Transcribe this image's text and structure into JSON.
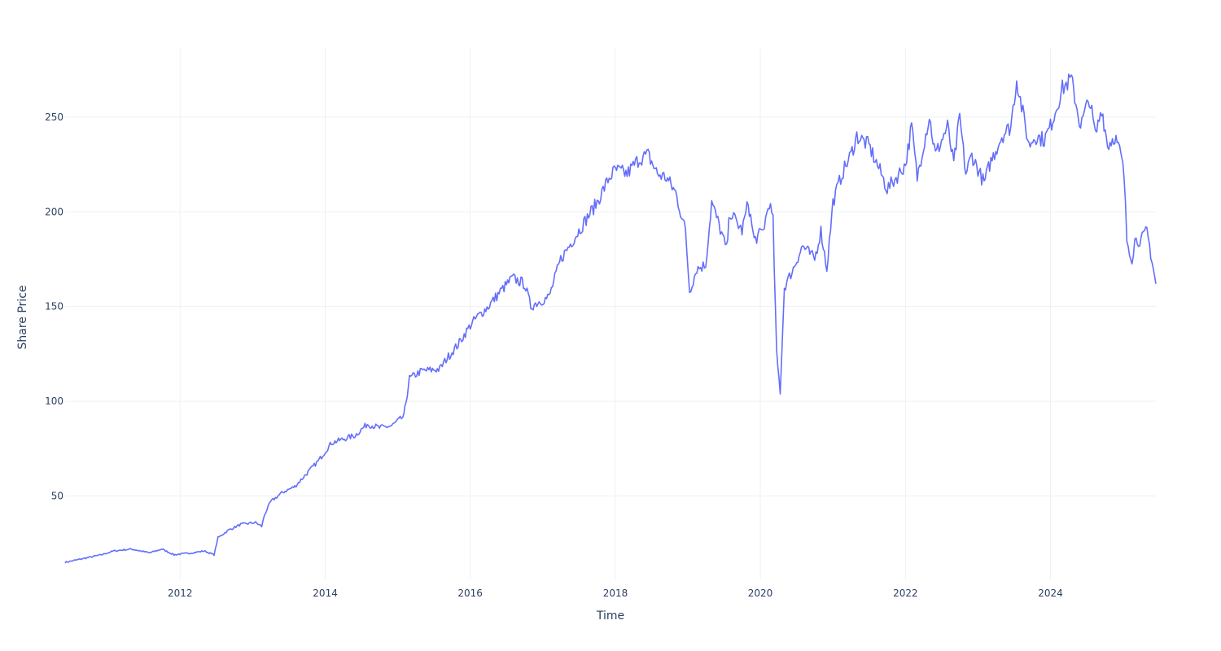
{
  "chart_data": {
    "type": "line",
    "title": "",
    "xlabel": "Time",
    "ylabel": "Share Price",
    "x_range": [
      "2010-06-01",
      "2025-06-15"
    ],
    "ylim": [
      6,
      286
    ],
    "x_ticks": [
      {
        "date": "2012-01-01",
        "label": "2012"
      },
      {
        "date": "2014-01-01",
        "label": "2014"
      },
      {
        "date": "2016-01-01",
        "label": "2016"
      },
      {
        "date": "2018-01-01",
        "label": "2018"
      },
      {
        "date": "2020-01-01",
        "label": "2020"
      },
      {
        "date": "2022-01-01",
        "label": "2022"
      },
      {
        "date": "2024-01-01",
        "label": "2024"
      }
    ],
    "y_ticks": [
      {
        "value": 50,
        "label": "50"
      },
      {
        "value": 100,
        "label": "100"
      },
      {
        "value": 150,
        "label": "150"
      },
      {
        "value": 200,
        "label": "200"
      },
      {
        "value": 250,
        "label": "250"
      }
    ],
    "grid": true,
    "legend": false,
    "color": "#636efa",
    "series": [
      {
        "x": [
          "2010-06-01",
          "2010-09-01",
          "2010-12-01",
          "2011-02-01",
          "2011-05-01",
          "2011-08-01",
          "2011-10-01",
          "2011-12-01",
          "2012-03-01",
          "2012-05-01",
          "2012-06-20",
          "2012-07-10",
          "2012-09-01",
          "2012-11-01",
          "2013-01-15",
          "2013-02-15",
          "2013-03-01",
          "2013-04-01",
          "2013-06-01",
          "2013-08-01",
          "2013-10-01",
          "2013-12-01",
          "2014-02-01",
          "2014-04-01",
          "2014-06-01",
          "2014-08-01",
          "2014-10-01",
          "2014-12-01",
          "2015-02-01",
          "2015-03-01",
          "2015-05-01",
          "2015-08-01",
          "2015-09-01",
          "2015-11-01",
          "2016-01-01",
          "2016-02-01",
          "2016-04-01",
          "2016-06-01",
          "2016-08-01",
          "2016-10-01",
          "2016-11-01",
          "2016-12-01",
          "2017-02-01",
          "2017-04-01",
          "2017-06-01",
          "2017-08-01",
          "2017-10-01",
          "2017-12-01",
          "2018-01-01",
          "2018-03-01",
          "2018-05-01",
          "2018-06-15",
          "2018-08-01",
          "2018-09-15",
          "2018-11-01",
          "2018-12-20",
          "2019-01-10",
          "2019-02-15",
          "2019-04-01",
          "2019-05-01",
          "2019-06-01",
          "2019-07-15",
          "2019-08-01",
          "2019-10-01",
          "2019-11-01",
          "2019-12-01",
          "2020-01-15",
          "2020-02-15",
          "2020-03-05",
          "2020-03-23",
          "2020-04-10",
          "2020-05-01",
          "2020-06-15",
          "2020-08-01",
          "2020-10-01",
          "2020-11-01",
          "2020-12-01",
          "2021-01-01",
          "2021-02-15",
          "2021-04-01",
          "2021-05-01",
          "2021-07-01",
          "2021-09-01",
          "2021-10-01",
          "2021-11-15",
          "2022-01-01",
          "2022-02-01",
          "2022-03-01",
          "2022-04-01",
          "2022-05-01",
          "2022-06-01",
          "2022-08-01",
          "2022-09-01",
          "2022-10-01",
          "2022-11-01",
          "2022-12-01",
          "2023-02-01",
          "2023-03-01",
          "2023-05-01",
          "2023-06-15",
          "2023-07-15",
          "2023-08-15",
          "2023-09-15",
          "2023-10-15",
          "2023-12-01",
          "2024-01-01",
          "2024-03-01",
          "2024-04-15",
          "2024-06-01",
          "2024-07-15",
          "2024-08-15",
          "2024-09-15",
          "2024-10-15",
          "2024-11-20",
          "2024-12-20",
          "2025-01-05",
          "2025-01-20",
          "2025-02-15",
          "2025-03-01",
          "2025-04-01",
          "2025-05-01",
          "2025-06-15"
        ],
        "y": [
          15,
          17,
          19,
          21,
          22,
          20,
          22,
          19,
          20,
          21,
          19,
          28,
          32,
          35,
          36,
          34,
          40,
          47,
          52,
          55,
          62,
          69,
          78,
          80,
          82,
          88,
          86,
          87,
          92,
          112,
          116,
          117,
          122,
          130,
          140,
          144,
          150,
          158,
          165,
          162,
          150,
          152,
          155,
          175,
          185,
          195,
          205,
          218,
          222,
          220,
          228,
          230,
          220,
          218,
          210,
          190,
          158,
          170,
          172,
          205,
          195,
          180,
          200,
          190,
          205,
          185,
          190,
          205,
          195,
          125,
          105,
          160,
          170,
          182,
          175,
          190,
          170,
          205,
          220,
          230,
          240,
          235,
          220,
          212,
          218,
          225,
          245,
          218,
          235,
          250,
          230,
          245,
          225,
          250,
          220,
          230,
          215,
          225,
          240,
          245,
          270,
          252,
          235,
          240,
          238,
          245,
          265,
          270,
          245,
          260,
          240,
          255,
          235,
          240,
          230,
          220,
          185,
          175,
          185,
          185,
          190,
          162
        ]
      }
    ]
  }
}
